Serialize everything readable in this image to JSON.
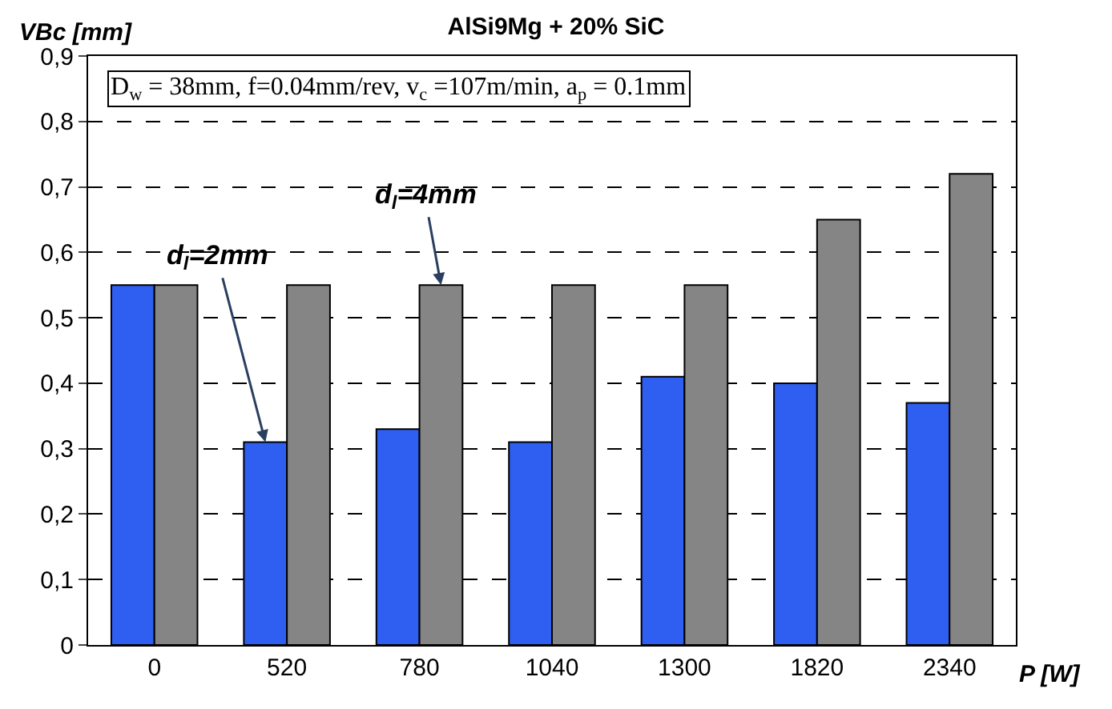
{
  "chart_data": {
    "type": "bar",
    "title": "AlSi9Mg + 20% SiC",
    "ylabel": "VBc [mm]",
    "xlabel": "P [W]",
    "categories": [
      "0",
      "520",
      "780",
      "1040",
      "1300",
      "1820",
      "2340"
    ],
    "series": [
      {
        "name": "d$_{l}$=2mm",
        "color": "#2f5ff0",
        "values": [
          0.55,
          0.31,
          0.33,
          0.31,
          0.41,
          0.4,
          0.37
        ]
      },
      {
        "name": "d$_{l}$=4mm",
        "color": "#858585",
        "values": [
          0.55,
          0.55,
          0.55,
          0.55,
          0.55,
          0.65,
          0.72
        ]
      }
    ],
    "ylim": [
      0,
      0.9
    ],
    "yticks": [
      0,
      {
        "value": 0.1,
        "label": "0,1"
      },
      {
        "value": 0.2,
        "label": "0,2"
      },
      {
        "value": 0.3,
        "label": "0,3"
      },
      {
        "value": 0.4,
        "label": "0,4"
      },
      {
        "value": 0.5,
        "label": "0,5"
      },
      {
        "value": 0.6,
        "label": "0,6"
      },
      {
        "value": 0.7,
        "label": "0,7"
      },
      {
        "value": 0.8,
        "label": "0,8"
      },
      {
        "value": 0.9,
        "label": "0,9"
      }
    ],
    "annotations": [
      "D$_{w}$ = 38mm, f=0.04mm/rev, v$_{c}$ =107m/min, a$_{p}$ = 0.1mm"
    ],
    "grid": "y",
    "legend": false
  }
}
